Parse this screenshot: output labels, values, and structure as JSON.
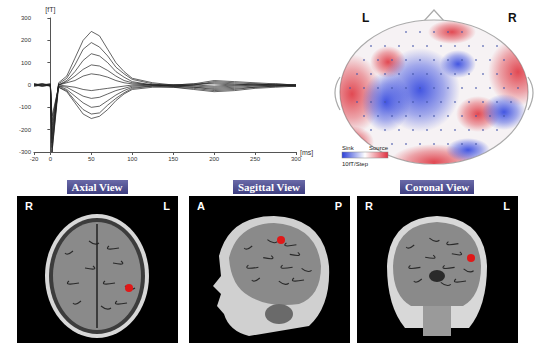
{
  "chart_data": {
    "type": "line",
    "x": [
      -20,
      -10,
      0,
      2,
      10,
      20,
      30,
      40,
      50,
      60,
      70,
      80,
      90,
      100,
      125,
      150,
      175,
      200,
      225,
      250,
      275,
      300
    ],
    "series": [
      {
        "color": "#222222",
        "values": [
          5,
          -5,
          0,
          -300,
          10,
          40,
          120,
          200,
          240,
          220,
          160,
          100,
          60,
          30,
          10,
          0,
          5,
          20,
          15,
          10,
          5,
          0
        ]
      },
      {
        "color": "#222222",
        "values": [
          0,
          5,
          0,
          -280,
          5,
          30,
          90,
          160,
          190,
          170,
          130,
          80,
          50,
          25,
          5,
          -5,
          0,
          15,
          10,
          5,
          0,
          -5
        ]
      },
      {
        "color": "#222222",
        "values": [
          -5,
          0,
          5,
          -260,
          0,
          20,
          60,
          110,
          140,
          130,
          100,
          60,
          35,
          15,
          0,
          -5,
          0,
          10,
          5,
          0,
          -5,
          0
        ]
      },
      {
        "color": "#222222",
        "values": [
          5,
          0,
          -5,
          -240,
          0,
          15,
          40,
          70,
          90,
          85,
          65,
          40,
          20,
          10,
          0,
          0,
          5,
          5,
          0,
          5,
          0,
          0
        ]
      },
      {
        "color": "#222222",
        "values": [
          0,
          -5,
          0,
          -220,
          0,
          10,
          20,
          40,
          50,
          45,
          35,
          20,
          10,
          5,
          0,
          0,
          0,
          -5,
          0,
          0,
          5,
          0
        ]
      },
      {
        "color": "#222222",
        "values": [
          0,
          5,
          0,
          -200,
          0,
          -5,
          -10,
          -20,
          -25,
          -20,
          -15,
          -10,
          -5,
          0,
          0,
          0,
          -5,
          -10,
          -5,
          0,
          0,
          0
        ]
      },
      {
        "color": "#222222",
        "values": [
          -5,
          0,
          5,
          -180,
          -5,
          -10,
          -30,
          -50,
          -60,
          -55,
          -40,
          -25,
          -15,
          -5,
          0,
          -5,
          -10,
          -15,
          -10,
          -5,
          0,
          -5
        ]
      },
      {
        "color": "#222222",
        "values": [
          5,
          0,
          0,
          -160,
          -5,
          -20,
          -50,
          -80,
          -100,
          -95,
          -70,
          -45,
          -25,
          -10,
          -5,
          -5,
          -10,
          -20,
          -15,
          -10,
          -5,
          0
        ]
      },
      {
        "color": "#222222",
        "values": [
          0,
          -5,
          0,
          -140,
          -10,
          -25,
          -70,
          -110,
          -130,
          -125,
          -90,
          -60,
          -35,
          -15,
          -5,
          -10,
          -15,
          -25,
          -20,
          -10,
          -5,
          -5
        ]
      },
      {
        "color": "#222222",
        "values": [
          0,
          5,
          -5,
          -300,
          -10,
          -30,
          -80,
          -130,
          -150,
          -140,
          -110,
          -70,
          -40,
          -20,
          -10,
          -10,
          -20,
          -30,
          -25,
          -15,
          -10,
          -5
        ]
      }
    ],
    "xlim": [
      -20,
      300
    ],
    "xticks": [
      -20,
      0,
      50,
      100,
      150,
      200,
      250,
      300
    ],
    "ylim": [
      -300,
      300
    ],
    "yticks": [
      -300,
      -200,
      -100,
      0,
      100,
      200,
      300
    ],
    "x_label": "[ms]",
    "y_label": "[fT]",
    "grid": false
  },
  "topomap": {
    "left": "L",
    "right": "R",
    "scale": {
      "sink": "Sink",
      "source": "Source",
      "step": "10fT/Step"
    }
  },
  "mri_panels": [
    {
      "title": "Axial View",
      "left": "R",
      "right": "L"
    },
    {
      "title": "Sagittal View",
      "left": "A",
      "right": "P"
    },
    {
      "title": "Coronal View",
      "left": "R",
      "right": "L"
    }
  ]
}
